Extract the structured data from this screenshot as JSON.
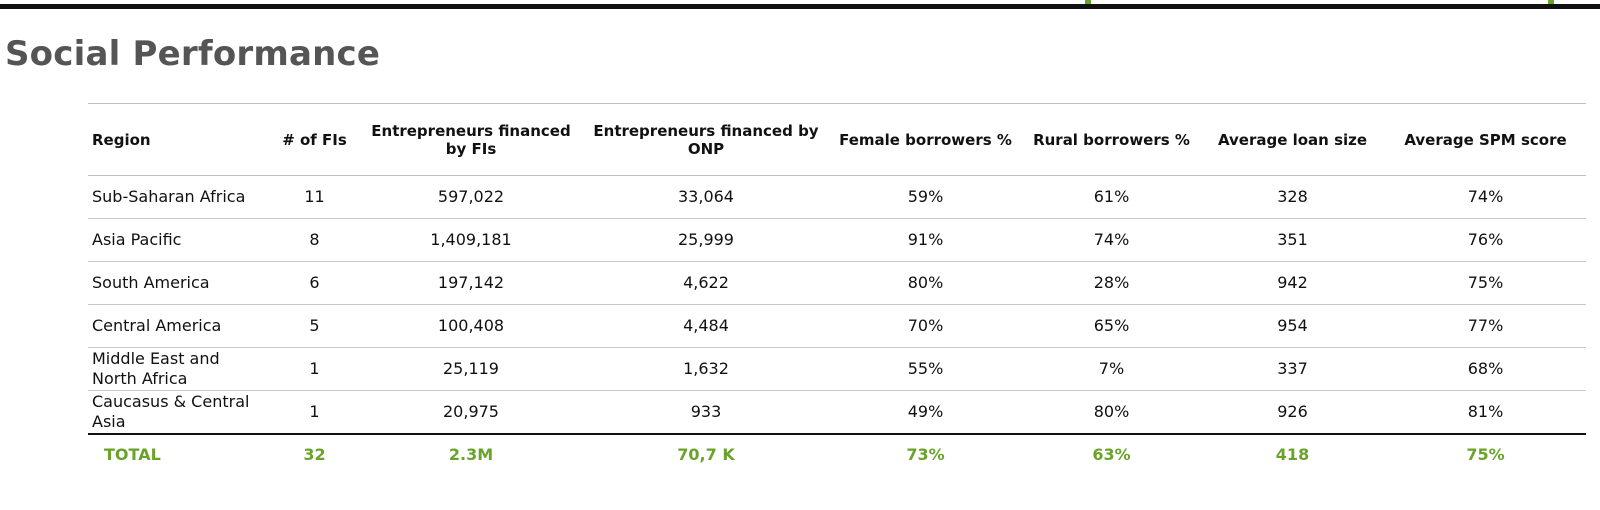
{
  "page": {
    "title": "Social Performance",
    "accent_color": "#6aa32a",
    "rule_color": "#111111"
  },
  "table": {
    "columns": [
      "Region",
      "# of FIs",
      "Entrepreneurs financed by FIs",
      "Entrepreneurs financed by ONP",
      "Female borrowers %",
      "Rural borrowers %",
      "Average loan size",
      "Average SPM score"
    ],
    "rows": [
      [
        "Sub-Saharan Africa",
        "11",
        "597,022",
        "33,064",
        "59%",
        "61%",
        "328",
        "74%"
      ],
      [
        "Asia Pacific",
        "8",
        "1,409,181",
        "25,999",
        "91%",
        "74%",
        "351",
        "76%"
      ],
      [
        "South America",
        "6",
        "197,142",
        "4,622",
        "80%",
        "28%",
        "942",
        "75%"
      ],
      [
        "Central America",
        "5",
        "100,408",
        "4,484",
        "70%",
        "65%",
        "954",
        "77%"
      ],
      [
        "Middle East and North Africa",
        "1",
        "25,119",
        "1,632",
        "55%",
        "7%",
        "337",
        "68%"
      ],
      [
        "Caucasus & Central Asia",
        "1",
        "20,975",
        "933",
        "49%",
        "80%",
        "926",
        "81%"
      ]
    ],
    "total": [
      "TOTAL",
      "32",
      "2.3M",
      "70,7 K",
      "73%",
      "63%",
      "418",
      "75%"
    ]
  }
}
